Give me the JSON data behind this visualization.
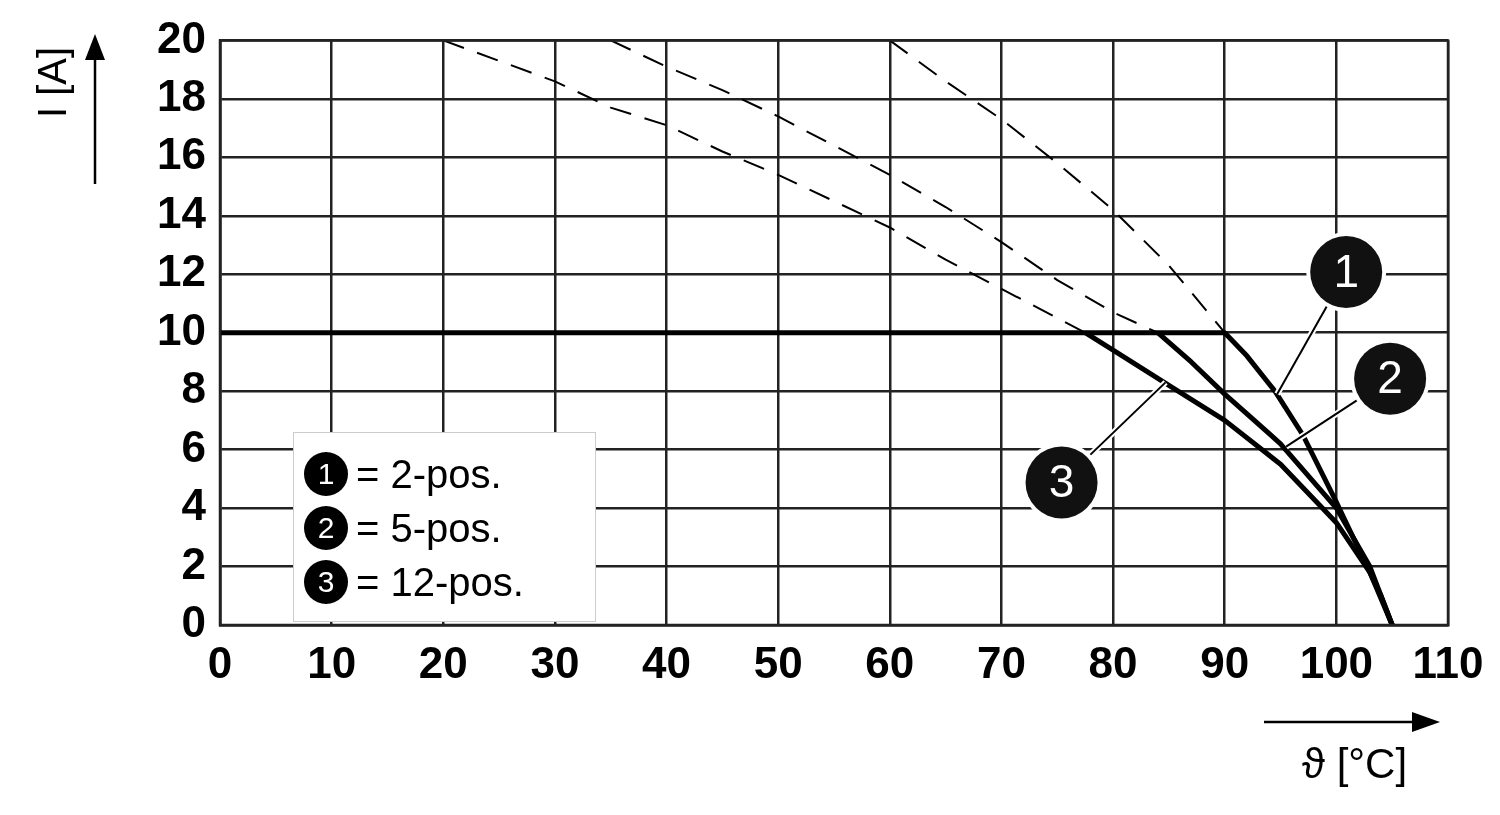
{
  "chart_data": {
    "type": "line",
    "xlabel": "ϑ [°C]",
    "ylabel": "I [A]",
    "xlim": [
      0,
      110
    ],
    "xticks": [
      0,
      10,
      20,
      30,
      40,
      50,
      60,
      70,
      80,
      90,
      100,
      110
    ],
    "ylim": [
      0,
      20
    ],
    "yticks": [
      0,
      2,
      4,
      6,
      8,
      10,
      12,
      14,
      16,
      18,
      20
    ],
    "grid": true,
    "legend": "bottom left",
    "marker": "none",
    "series": [
      {
        "name": "= 2-pos.",
        "color": "#000000",
        "line_style": "solid",
        "x": [
          0,
          90,
          92,
          94.5,
          97,
          100,
          102,
          104,
          105
        ],
        "values": [
          10,
          10,
          9.2,
          8,
          6.5,
          4.2,
          2.6,
          1,
          0
        ]
      },
      {
        "name": "= 5-pos.",
        "color": "#000000",
        "line_style": "solid",
        "x": [
          84,
          87,
          90,
          95,
          100,
          103,
          105
        ],
        "values": [
          10,
          9,
          7.9,
          6.2,
          4,
          2,
          0
        ]
      },
      {
        "name": "= 12-pos.",
        "color": "#000000",
        "line_style": "solid",
        "x": [
          77.5,
          80,
          85,
          90,
          95,
          100,
          103,
          105
        ],
        "values": [
          10,
          9.4,
          8.2,
          7,
          5.5,
          3.5,
          1.8,
          0
        ]
      },
      {
        "color": "#000000",
        "line_style": "dashed",
        "x": [
          60,
          65,
          70,
          75,
          80,
          85,
          90
        ],
        "values": [
          20,
          18.6,
          17.3,
          15.8,
          14.2,
          12.3,
          10
        ]
      },
      {
        "color": "#000000",
        "line_style": "dashed",
        "x": [
          35,
          40,
          45,
          50,
          55,
          60,
          65,
          70,
          75,
          80,
          84
        ],
        "values": [
          20,
          19.1,
          18.3,
          17.4,
          16.4,
          15.4,
          14.3,
          13.1,
          11.8,
          10.7,
          10
        ]
      },
      {
        "color": "#000000",
        "line_style": "dashed",
        "x": [
          20,
          25,
          30,
          35,
          40,
          45,
          50,
          55,
          60,
          65,
          70,
          75,
          77.5
        ],
        "values": [
          20,
          19.3,
          18.6,
          17.7,
          17.1,
          16.2,
          15.4,
          14.5,
          13.6,
          12.5,
          11.5,
          10.5,
          10
        ]
      }
    ],
    "annotations": [
      {
        "text": "1",
        "x": 94.7,
        "y": 7.9
      },
      {
        "text": "2",
        "x": 95.5,
        "y": 6.1
      },
      {
        "text": "3",
        "x": 84.7,
        "y": 8.3
      }
    ]
  }
}
